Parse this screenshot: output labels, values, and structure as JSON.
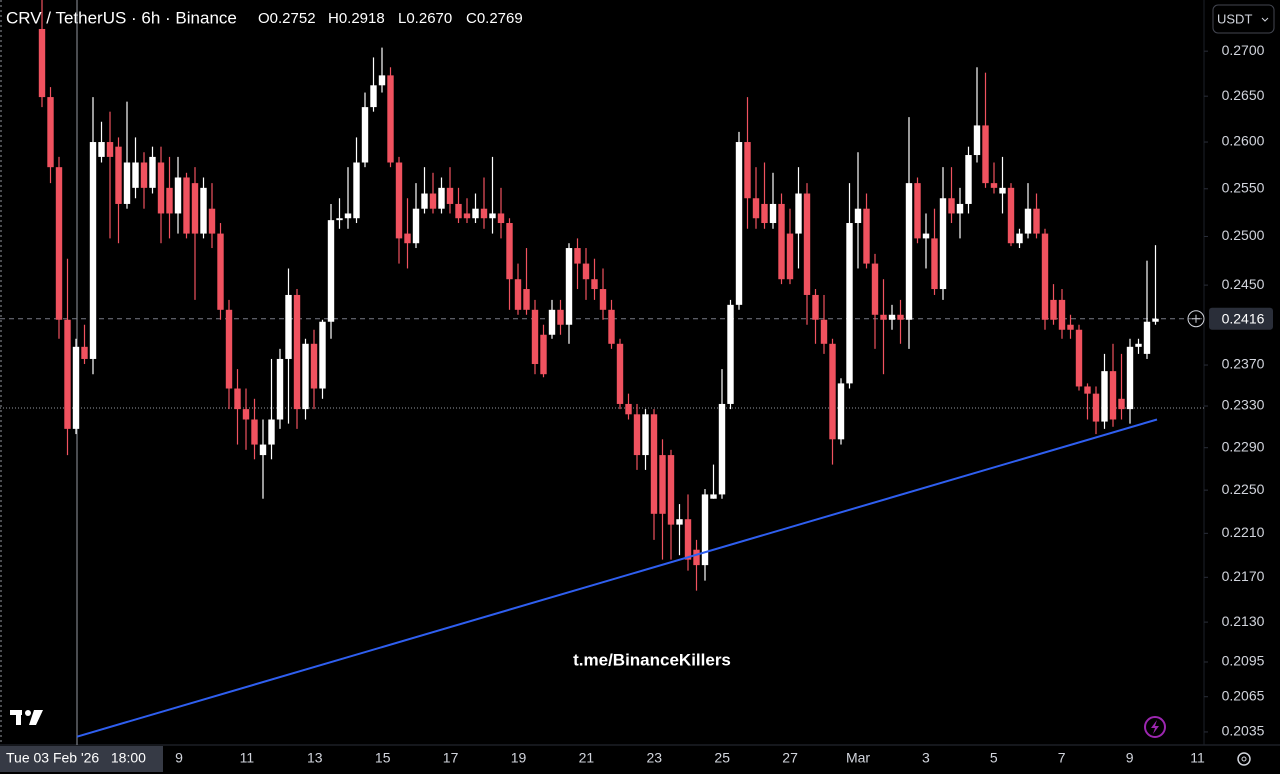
{
  "header": {
    "symbol": "CRV / TetherUS · 6h · Binance",
    "open": "O0.2752",
    "high": "H0.2918",
    "low": "L0.2670",
    "close": "C0.2769",
    "currency": "USDT"
  },
  "chart_data": {
    "type": "candlestick",
    "log": true,
    "grid": false,
    "up_color": "#ffffff",
    "down_color": "#f0525f",
    "ylim": [
      0.2024,
      0.2758
    ],
    "yticks": [
      {
        "value": 0.27,
        "label": "0.2700"
      },
      {
        "value": 0.265,
        "label": "0.2650"
      },
      {
        "value": 0.26,
        "label": "0.2600"
      },
      {
        "value": 0.255,
        "label": "0.2550"
      },
      {
        "value": 0.25,
        "label": "0.2500"
      },
      {
        "value": 0.245,
        "label": "0.2450"
      },
      {
        "value": 0.237,
        "label": "0.2370"
      },
      {
        "value": 0.233,
        "label": "0.2330"
      },
      {
        "value": 0.229,
        "label": "0.2290"
      },
      {
        "value": 0.225,
        "label": "0.2250"
      },
      {
        "value": 0.221,
        "label": "0.2210"
      },
      {
        "value": 0.217,
        "label": "0.2170"
      },
      {
        "value": 0.213,
        "label": "0.2130"
      },
      {
        "value": 0.2095,
        "label": "0.2095"
      },
      {
        "value": 0.2065,
        "label": "0.2065"
      },
      {
        "value": 0.2035,
        "label": "0.2035"
      }
    ],
    "last_price": {
      "value": 0.2416,
      "label": "0.2416"
    },
    "x_labels": [
      "9",
      "11",
      "13",
      "15",
      "17",
      "19",
      "21",
      "23",
      "25",
      "27",
      "Mar",
      "3",
      "5",
      "7",
      "9",
      "11"
    ],
    "crosshair_label": "Tue 03 Feb '26   18:00",
    "watermark": "t.me/BinanceKillers",
    "trendline": {
      "start": 0.2031,
      "end": 0.2317,
      "color": "#2f5ff0"
    },
    "candles": [
      [
        0.2725,
        0.2758,
        0.2638,
        0.2649
      ],
      [
        0.2649,
        0.266,
        0.2556,
        0.2573
      ],
      [
        0.2573,
        0.2584,
        0.2396,
        0.2415
      ],
      [
        0.2415,
        0.2477,
        0.2283,
        0.2308
      ],
      [
        0.2308,
        0.2396,
        0.2303,
        0.2388
      ],
      [
        0.2388,
        0.241,
        0.2371,
        0.2376
      ],
      [
        0.2376,
        0.2649,
        0.2361,
        0.26
      ],
      [
        0.2584,
        0.2622,
        0.2578,
        0.26
      ],
      [
        0.26,
        0.2633,
        0.2498,
        0.2584
      ],
      [
        0.2595,
        0.2605,
        0.2493,
        0.2534
      ],
      [
        0.2534,
        0.2644,
        0.2529,
        0.2578
      ],
      [
        0.2551,
        0.2605,
        0.254,
        0.2578
      ],
      [
        0.2578,
        0.2589,
        0.2529,
        0.2551
      ],
      [
        0.2551,
        0.2595,
        0.2545,
        0.2584
      ],
      [
        0.2578,
        0.2595,
        0.2493,
        0.2524
      ],
      [
        0.2551,
        0.2584,
        0.2498,
        0.2524
      ],
      [
        0.2524,
        0.2584,
        0.2503,
        0.2562
      ],
      [
        0.2562,
        0.2567,
        0.2498,
        0.2503
      ],
      [
        0.2556,
        0.2573,
        0.2435,
        0.2503
      ],
      [
        0.2503,
        0.2562,
        0.2498,
        0.2551
      ],
      [
        0.2529,
        0.2556,
        0.2488,
        0.2503
      ],
      [
        0.2503,
        0.2514,
        0.2415,
        0.2425
      ],
      [
        0.2425,
        0.2435,
        0.2327,
        0.2347
      ],
      [
        0.2347,
        0.2366,
        0.2293,
        0.2327
      ],
      [
        0.2327,
        0.2347,
        0.2288,
        0.2317
      ],
      [
        0.2317,
        0.2337,
        0.2279,
        0.2293
      ],
      [
        0.2283,
        0.2317,
        0.2242,
        0.2293
      ],
      [
        0.2293,
        0.2376,
        0.2279,
        0.2317
      ],
      [
        0.2317,
        0.2386,
        0.2308,
        0.2376
      ],
      [
        0.2376,
        0.2467,
        0.2313,
        0.244
      ],
      [
        0.244,
        0.2446,
        0.2308,
        0.2327
      ],
      [
        0.2327,
        0.2396,
        0.2317,
        0.2391
      ],
      [
        0.2391,
        0.2405,
        0.2327,
        0.2347
      ],
      [
        0.2347,
        0.2415,
        0.2337,
        0.2413
      ],
      [
        0.2413,
        0.2534,
        0.2396,
        0.2517
      ],
      [
        0.2517,
        0.254,
        0.2508,
        0.2519
      ],
      [
        0.2519,
        0.2573,
        0.2508,
        0.2524
      ],
      [
        0.2519,
        0.2605,
        0.2514,
        0.2578
      ],
      [
        0.2578,
        0.2654,
        0.2573,
        0.2638
      ],
      [
        0.2638,
        0.2693,
        0.2633,
        0.2662
      ],
      [
        0.2662,
        0.2704,
        0.2654,
        0.2673
      ],
      [
        0.2673,
        0.2682,
        0.2573,
        0.2578
      ],
      [
        0.2578,
        0.2584,
        0.2472,
        0.2498
      ],
      [
        0.2503,
        0.254,
        0.2467,
        0.2493
      ],
      [
        0.2493,
        0.2556,
        0.2488,
        0.2529
      ],
      [
        0.2529,
        0.2573,
        0.2524,
        0.2545
      ],
      [
        0.2545,
        0.2567,
        0.2524,
        0.2529
      ],
      [
        0.2529,
        0.2562,
        0.2524,
        0.2551
      ],
      [
        0.2551,
        0.2573,
        0.2524,
        0.2534
      ],
      [
        0.2534,
        0.2551,
        0.2514,
        0.2519
      ],
      [
        0.2524,
        0.254,
        0.2514,
        0.2519
      ],
      [
        0.2519,
        0.2545,
        0.2514,
        0.2529
      ],
      [
        0.2529,
        0.2562,
        0.2508,
        0.2519
      ],
      [
        0.2519,
        0.2584,
        0.2503,
        0.2524
      ],
      [
        0.2524,
        0.2551,
        0.2498,
        0.2514
      ],
      [
        0.2514,
        0.2519,
        0.2425,
        0.2456
      ],
      [
        0.2456,
        0.2472,
        0.242,
        0.2425
      ],
      [
        0.2446,
        0.2488,
        0.242,
        0.2425
      ],
      [
        0.2425,
        0.2435,
        0.2361,
        0.2371
      ],
      [
        0.24,
        0.241,
        0.2358,
        0.2361
      ],
      [
        0.24,
        0.2435,
        0.2396,
        0.2425
      ],
      [
        0.2425,
        0.2435,
        0.24,
        0.241
      ],
      [
        0.241,
        0.2493,
        0.2391,
        0.2488
      ],
      [
        0.2488,
        0.2498,
        0.2446,
        0.2472
      ],
      [
        0.2472,
        0.2488,
        0.2435,
        0.2456
      ],
      [
        0.2456,
        0.2477,
        0.2435,
        0.2446
      ],
      [
        0.2446,
        0.2467,
        0.2415,
        0.2425
      ],
      [
        0.2425,
        0.2435,
        0.2386,
        0.2391
      ],
      [
        0.2391,
        0.2396,
        0.2327,
        0.2332
      ],
      [
        0.2332,
        0.2342,
        0.2317,
        0.2322
      ],
      [
        0.2322,
        0.2332,
        0.2269,
        0.2283
      ],
      [
        0.2283,
        0.2327,
        0.2269,
        0.2322
      ],
      [
        0.2322,
        0.2327,
        0.2204,
        0.2228
      ],
      [
        0.2283,
        0.2298,
        0.2186,
        0.2228
      ],
      [
        0.2283,
        0.2288,
        0.2186,
        0.2218
      ],
      [
        0.2218,
        0.2237,
        0.219,
        0.2223
      ],
      [
        0.2223,
        0.2246,
        0.2176,
        0.2186
      ],
      [
        0.2195,
        0.2204,
        0.2158,
        0.2181
      ],
      [
        0.2181,
        0.2251,
        0.2167,
        0.2246
      ],
      [
        0.2242,
        0.2274,
        0.2242,
        0.2246
      ],
      [
        0.2246,
        0.2366,
        0.2242,
        0.2332
      ],
      [
        0.2332,
        0.2435,
        0.2327,
        0.243
      ],
      [
        0.243,
        0.2611,
        0.2425,
        0.26
      ],
      [
        0.26,
        0.2649,
        0.2508,
        0.254
      ],
      [
        0.254,
        0.2573,
        0.2508,
        0.2519
      ],
      [
        0.2534,
        0.2578,
        0.2508,
        0.2514
      ],
      [
        0.2514,
        0.2567,
        0.2508,
        0.2534
      ],
      [
        0.2534,
        0.2545,
        0.2451,
        0.2456
      ],
      [
        0.2503,
        0.2529,
        0.2451,
        0.2456
      ],
      [
        0.2503,
        0.2573,
        0.2467,
        0.2545
      ],
      [
        0.2545,
        0.2556,
        0.241,
        0.244
      ],
      [
        0.244,
        0.2446,
        0.2391,
        0.2415
      ],
      [
        0.2415,
        0.244,
        0.2381,
        0.2391
      ],
      [
        0.2391,
        0.2396,
        0.2274,
        0.2298
      ],
      [
        0.2298,
        0.2357,
        0.2293,
        0.2352
      ],
      [
        0.2352,
        0.2556,
        0.2347,
        0.2514
      ],
      [
        0.2514,
        0.2589,
        0.2467,
        0.2529
      ],
      [
        0.2529,
        0.2545,
        0.2467,
        0.2472
      ],
      [
        0.2472,
        0.2482,
        0.2386,
        0.242
      ],
      [
        0.242,
        0.2456,
        0.2361,
        0.2415
      ],
      [
        0.2415,
        0.243,
        0.2405,
        0.242
      ],
      [
        0.242,
        0.2435,
        0.2391,
        0.2415
      ],
      [
        0.2415,
        0.2627,
        0.2386,
        0.2556
      ],
      [
        0.2556,
        0.2562,
        0.2493,
        0.2498
      ],
      [
        0.2498,
        0.2524,
        0.2467,
        0.2503
      ],
      [
        0.2498,
        0.2529,
        0.244,
        0.2446
      ],
      [
        0.2446,
        0.2573,
        0.2435,
        0.254
      ],
      [
        0.254,
        0.2573,
        0.2514,
        0.2524
      ],
      [
        0.2524,
        0.2551,
        0.2498,
        0.2534
      ],
      [
        0.2534,
        0.2595,
        0.2524,
        0.2586
      ],
      [
        0.2586,
        0.2682,
        0.2578,
        0.2618
      ],
      [
        0.2618,
        0.2676,
        0.2551,
        0.2556
      ],
      [
        0.2556,
        0.2578,
        0.2545,
        0.2551
      ],
      [
        0.2545,
        0.2584,
        0.2524,
        0.2551
      ],
      [
        0.2551,
        0.2556,
        0.249,
        0.2493
      ],
      [
        0.2493,
        0.2508,
        0.2488,
        0.2503
      ],
      [
        0.2503,
        0.2556,
        0.2498,
        0.2529
      ],
      [
        0.2529,
        0.2545,
        0.2498,
        0.2503
      ],
      [
        0.2503,
        0.2508,
        0.2405,
        0.2415
      ],
      [
        0.2435,
        0.2451,
        0.241,
        0.2415
      ],
      [
        0.2435,
        0.2446,
        0.2396,
        0.2405
      ],
      [
        0.241,
        0.242,
        0.2396,
        0.2405
      ],
      [
        0.2405,
        0.241,
        0.2345,
        0.2349
      ],
      [
        0.2349,
        0.2352,
        0.2317,
        0.2342
      ],
      [
        0.2342,
        0.2349,
        0.2303,
        0.2315
      ],
      [
        0.2315,
        0.2381,
        0.2308,
        0.2364
      ],
      [
        0.2364,
        0.2391,
        0.231,
        0.2317
      ],
      [
        0.2337,
        0.2381,
        0.2317,
        0.2327
      ],
      [
        0.2327,
        0.2396,
        0.2313,
        0.2388
      ],
      [
        0.2388,
        0.2396,
        0.2381,
        0.2391
      ],
      [
        0.2381,
        0.2475,
        0.2376,
        0.2413
      ],
      [
        0.2413,
        0.2491,
        0.241,
        0.2416
      ]
    ]
  }
}
